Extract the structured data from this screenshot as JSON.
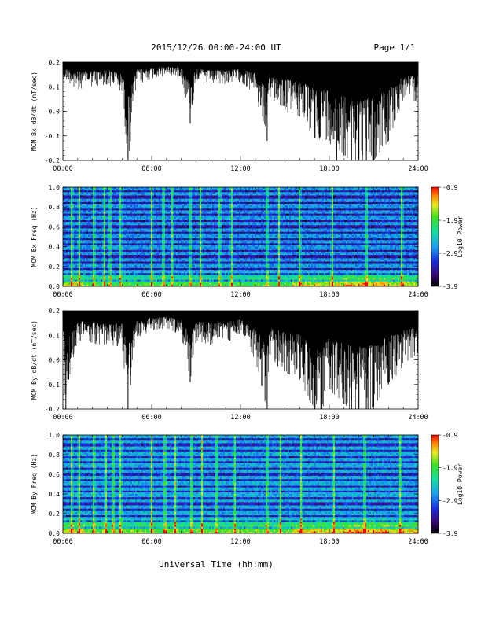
{
  "header": {
    "title": "2015/12/26  00:00-24:00 UT",
    "page": "Page 1/1"
  },
  "xlabel": "Universal Time (hh:mm)",
  "chart_data": [
    {
      "type": "line",
      "ylabel": "MCM Bx dB/dt (nT/sec)",
      "ylim": [
        -0.2,
        0.2
      ],
      "yticks": [
        "0.2",
        "0.1",
        "0.0",
        "-0.1",
        "-0.2"
      ],
      "xticks": [
        "00:00",
        "06:00",
        "12:00",
        "18:00",
        "24:00"
      ],
      "x_hours": [
        0,
        1,
        2,
        3,
        4,
        4.4,
        5,
        6,
        7,
        8,
        8.6,
        9,
        10,
        11,
        12,
        13,
        13.8,
        14,
        15,
        16,
        17,
        18,
        18.5,
        19,
        19.5,
        20,
        20.5,
        21,
        22,
        23,
        24
      ],
      "envelope_max": [
        0.2,
        0.2,
        0.2,
        0.2,
        0.2,
        0.2,
        0.2,
        0.2,
        0.2,
        0.2,
        0.2,
        0.2,
        0.2,
        0.2,
        0.2,
        0.2,
        0.2,
        0.2,
        0.2,
        0.2,
        0.2,
        0.2,
        0.2,
        0.2,
        0.2,
        0.2,
        0.2,
        0.2,
        0.2,
        0.2,
        0.2
      ],
      "envelope_min": [
        0.13,
        0.09,
        0.1,
        0.11,
        0.08,
        -0.21,
        0.11,
        0.13,
        0.15,
        0.14,
        -0.05,
        0.13,
        0.1,
        0.11,
        0.12,
        0.07,
        -0.12,
        0.06,
        0.0,
        -0.02,
        -0.11,
        -0.12,
        -0.21,
        -0.18,
        -0.21,
        -0.21,
        -0.21,
        -0.2,
        -0.12,
        0.05,
        0.04
      ]
    },
    {
      "type": "heatmap",
      "ylabel": "MCM Bx Freq (Hz)",
      "ylim": [
        0,
        1.0
      ],
      "yticks": [
        "1.0",
        "0.8",
        "0.6",
        "0.4",
        "0.2",
        "0.0"
      ],
      "xticks": [
        "00:00",
        "06:00",
        "12:00",
        "18:00",
        "24:00"
      ],
      "colorbar": {
        "label": "Log10 Power",
        "ticks": [
          "-0.9",
          "-1.9",
          "-2.9",
          "-3.9"
        ],
        "range": [
          -3.9,
          -0.9
        ]
      },
      "bright_time_columns_hours": [
        0.6,
        1.1,
        2.1,
        2.8,
        3.2,
        3.9,
        6.0,
        6.8,
        7.4,
        8.6,
        9.3,
        10.6,
        11.4,
        13.8,
        14.6,
        16.0,
        18.2,
        20.5,
        22.9
      ],
      "noise_band_freqs_hz": [
        0.06,
        0.12,
        0.18,
        0.24,
        0.3,
        0.36,
        0.42,
        0.48,
        0.54,
        0.6,
        0.66,
        0.72,
        0.78,
        0.84,
        0.9,
        0.96
      ]
    },
    {
      "type": "line",
      "ylabel": "MCM By dB/dt (nT/sec)",
      "ylim": [
        -0.2,
        0.2
      ],
      "yticks": [
        "0.2",
        "0.1",
        "0.0",
        "-0.1",
        "-0.2"
      ],
      "xticks": [
        "00:00",
        "06:00",
        "12:00",
        "18:00",
        "24:00"
      ],
      "x_hours": [
        0,
        0.2,
        0.4,
        1,
        2,
        3,
        4,
        4.4,
        5,
        6,
        7,
        8,
        8.6,
        9,
        10,
        11,
        12,
        13,
        13.8,
        14,
        15,
        16,
        17,
        17.5,
        18,
        19,
        19.5,
        20,
        20.5,
        21,
        22,
        23,
        24
      ],
      "envelope_max": [
        0.2,
        0.2,
        0.2,
        0.2,
        0.2,
        0.2,
        0.2,
        0.2,
        0.2,
        0.2,
        0.2,
        0.2,
        0.2,
        0.2,
        0.2,
        0.2,
        0.2,
        0.2,
        0.2,
        0.2,
        0.2,
        0.2,
        0.2,
        0.2,
        0.2,
        0.2,
        0.2,
        0.2,
        0.2,
        0.2,
        0.2,
        0.2,
        0.2
      ],
      "envelope_min": [
        0.1,
        -0.2,
        -0.08,
        0.08,
        0.07,
        0.05,
        0.06,
        -0.21,
        0.09,
        0.12,
        0.13,
        0.1,
        -0.09,
        0.08,
        0.06,
        0.07,
        0.1,
        0.0,
        -0.21,
        0.0,
        -0.05,
        -0.08,
        -0.21,
        -0.21,
        -0.12,
        -0.18,
        -0.21,
        -0.21,
        -0.21,
        -0.19,
        -0.1,
        -0.03,
        0.03
      ]
    },
    {
      "type": "heatmap",
      "ylabel": "MCM By Freq (Hz)",
      "ylim": [
        0,
        1.0
      ],
      "yticks": [
        "1.0",
        "0.8",
        "0.6",
        "0.4",
        "0.2",
        "0.0"
      ],
      "xticks": [
        "00:00",
        "06:00",
        "12:00",
        "18:00",
        "24:00"
      ],
      "colorbar": {
        "label": "Log10 Power",
        "ticks": [
          "-0.9",
          "-1.9",
          "-2.9",
          "-3.9"
        ],
        "range": [
          -3.9,
          -0.9
        ]
      },
      "bright_time_columns_hours": [
        0.6,
        1.1,
        2.1,
        2.9,
        3.4,
        3.9,
        6.0,
        6.9,
        7.6,
        8.7,
        9.4,
        10.4,
        11.6,
        13.8,
        14.7,
        16.1,
        18.3,
        20.4,
        22.8
      ],
      "noise_band_freqs_hz": [
        0.06,
        0.12,
        0.18,
        0.24,
        0.3,
        0.36,
        0.42,
        0.48,
        0.54,
        0.6,
        0.66,
        0.72,
        0.78,
        0.84,
        0.9,
        0.96
      ]
    }
  ]
}
